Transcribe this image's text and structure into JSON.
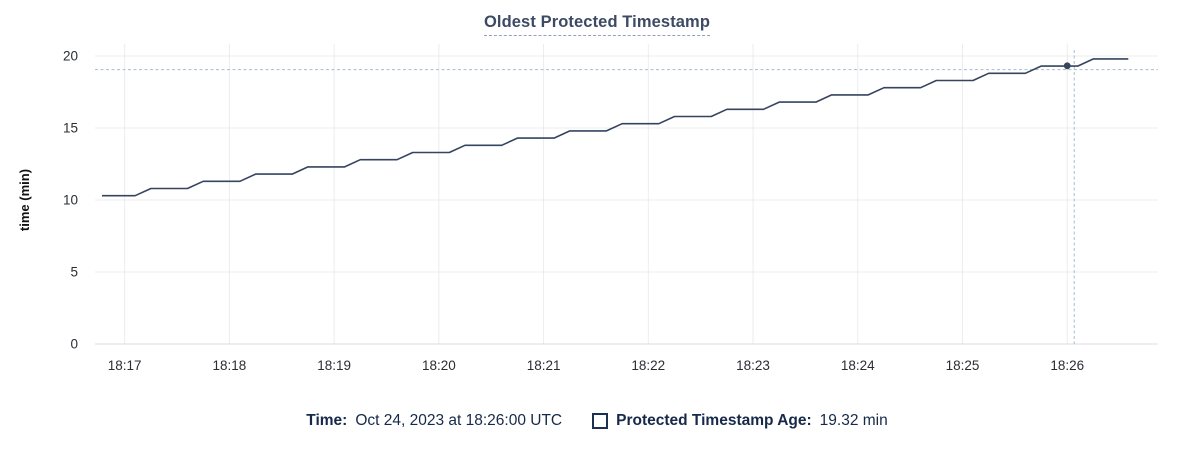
{
  "title": "Oldest Protected Timestamp",
  "colors": {
    "title": "#3c4a64",
    "title_underline": "#94a1b5",
    "line": "#36445f",
    "grid": "#ececee",
    "axis": "#dddde0",
    "crosshair": "#a5bfcd",
    "tick_label": "#2a2d33",
    "axis_label": "#111111",
    "legend_text": "#16294a"
  },
  "legend": {
    "time_label": "Time:",
    "time_value": "Oct 24, 2023 at 18:26:00 UTC",
    "series_label": "Protected Timestamp Age:",
    "series_value": "19.32 min",
    "marker": "square-outline"
  },
  "chart_data": {
    "type": "line",
    "title": "Oldest Protected Timestamp",
    "xlabel": "",
    "ylabel": "time (min)",
    "ylim": [
      0,
      20
    ],
    "y_ticks": [
      0,
      5,
      10,
      15,
      20
    ],
    "x_ticks": [
      "18:17",
      "18:18",
      "18:19",
      "18:20",
      "18:21",
      "18:22",
      "18:23",
      "18:24",
      "18:25",
      "18:26"
    ],
    "x_range": [
      "18:16:43",
      "18:26:52"
    ],
    "grid": true,
    "legend_position": "bottom",
    "series": [
      {
        "name": "Protected Timestamp Age",
        "unit": "min",
        "points": [
          [
            "18:16:47",
            10.3
          ],
          [
            "18:17:06",
            10.3
          ],
          [
            "18:17:15",
            10.8
          ],
          [
            "18:17:36",
            10.8
          ],
          [
            "18:17:45",
            11.3
          ],
          [
            "18:18:06",
            11.3
          ],
          [
            "18:18:15",
            11.8
          ],
          [
            "18:18:36",
            11.8
          ],
          [
            "18:18:45",
            12.3
          ],
          [
            "18:19:06",
            12.3
          ],
          [
            "18:19:15",
            12.8
          ],
          [
            "18:19:36",
            12.8
          ],
          [
            "18:19:45",
            13.3
          ],
          [
            "18:20:06",
            13.3
          ],
          [
            "18:20:15",
            13.8
          ],
          [
            "18:20:36",
            13.8
          ],
          [
            "18:20:45",
            14.3
          ],
          [
            "18:21:06",
            14.3
          ],
          [
            "18:21:15",
            14.8
          ],
          [
            "18:21:36",
            14.8
          ],
          [
            "18:21:45",
            15.3
          ],
          [
            "18:22:06",
            15.3
          ],
          [
            "18:22:15",
            15.8
          ],
          [
            "18:22:36",
            15.8
          ],
          [
            "18:22:45",
            16.3
          ],
          [
            "18:23:06",
            16.3
          ],
          [
            "18:23:15",
            16.8
          ],
          [
            "18:23:36",
            16.8
          ],
          [
            "18:23:45",
            17.3
          ],
          [
            "18:24:06",
            17.3
          ],
          [
            "18:24:15",
            17.8
          ],
          [
            "18:24:36",
            17.8
          ],
          [
            "18:24:45",
            18.3
          ],
          [
            "18:25:06",
            18.3
          ],
          [
            "18:25:15",
            18.8
          ],
          [
            "18:25:36",
            18.8
          ],
          [
            "18:25:45",
            19.3
          ],
          [
            "18:26:06",
            19.3
          ],
          [
            "18:26:15",
            19.8
          ],
          [
            "18:26:35",
            19.8
          ]
        ]
      }
    ],
    "highlight": {
      "time": "18:26:00",
      "value": 19.32
    },
    "crosshair": {
      "time": "18:26:04",
      "value": 19.05
    }
  }
}
